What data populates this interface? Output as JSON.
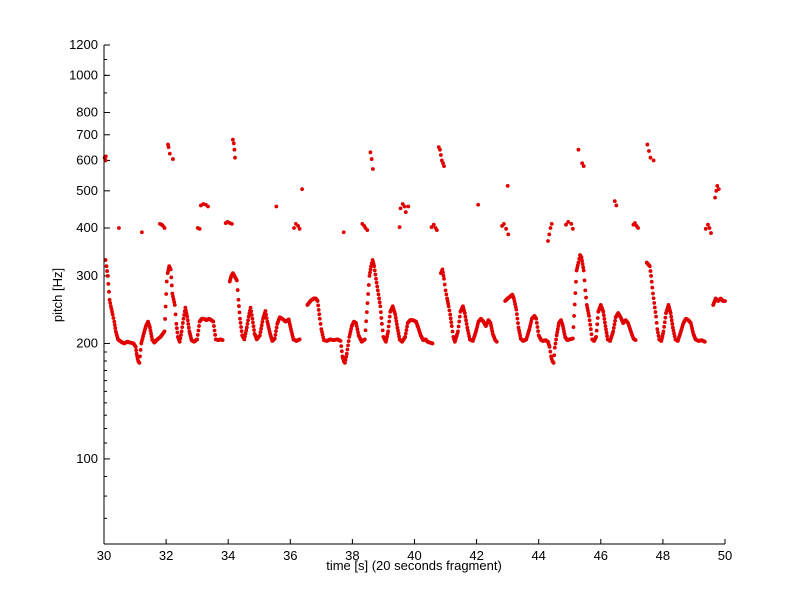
{
  "chart_data": {
    "type": "scatter",
    "xlabel": "time [s] (20 seconds fragment)",
    "ylabel": "pitch [Hz]",
    "xlim": [
      30,
      50
    ],
    "ylim": [
      60,
      1200
    ],
    "yscale": "log",
    "x_ticks": [
      30,
      32,
      34,
      36,
      38,
      40,
      42,
      44,
      46,
      48,
      50
    ],
    "y_ticks": [
      100,
      200,
      300,
      400,
      500,
      600,
      700,
      800,
      1000,
      1200
    ],
    "grid": false,
    "marker_color": "#e00000",
    "segments": [
      [
        30.05,
        330
      ],
      [
        30.08,
        318
      ],
      [
        30.12,
        300
      ],
      [
        30.18,
        260
      ],
      [
        30.22,
        250
      ],
      [
        30.28,
        238
      ],
      [
        30.33,
        228
      ],
      [
        30.38,
        215
      ],
      [
        30.45,
        205
      ],
      [
        30.55,
        202
      ],
      [
        30.65,
        200
      ],
      [
        30.75,
        202
      ],
      [
        30.85,
        201
      ],
      [
        30.95,
        200
      ],
      [
        31.02,
        196
      ],
      [
        31.05,
        188
      ],
      [
        31.1,
        180
      ],
      [
        31.14,
        178
      ],
      [
        31.2,
        200
      ],
      [
        31.28,
        212
      ],
      [
        31.35,
        222
      ],
      [
        31.42,
        228
      ],
      [
        31.48,
        220
      ],
      [
        31.55,
        205
      ],
      [
        31.62,
        201
      ],
      [
        31.72,
        205
      ],
      [
        31.82,
        208
      ],
      [
        31.95,
        215
      ],
      [
        32.02,
        290
      ],
      [
        32.05,
        305
      ],
      [
        32.1,
        318
      ],
      [
        32.15,
        312
      ],
      [
        32.2,
        270
      ],
      [
        32.28,
        252
      ],
      [
        32.33,
        225
      ],
      [
        32.38,
        208
      ],
      [
        32.44,
        202
      ],
      [
        32.5,
        215
      ],
      [
        32.56,
        232
      ],
      [
        32.62,
        248
      ],
      [
        32.68,
        235
      ],
      [
        32.75,
        215
      ],
      [
        32.82,
        204
      ],
      [
        32.9,
        202
      ],
      [
        33.0,
        205
      ],
      [
        33.08,
        228
      ],
      [
        33.15,
        232
      ],
      [
        33.22,
        232
      ],
      [
        33.3,
        230
      ],
      [
        33.38,
        232
      ],
      [
        33.46,
        230
      ],
      [
        33.52,
        228
      ],
      [
        33.6,
        205
      ],
      [
        33.68,
        204
      ],
      [
        33.75,
        205
      ],
      [
        33.82,
        204
      ],
      [
        34.05,
        290
      ],
      [
        34.1,
        300
      ],
      [
        34.15,
        305
      ],
      [
        34.2,
        300
      ],
      [
        34.28,
        292
      ],
      [
        34.33,
        260
      ],
      [
        34.38,
        232
      ],
      [
        34.45,
        210
      ],
      [
        34.52,
        205
      ],
      [
        34.6,
        220
      ],
      [
        34.66,
        235
      ],
      [
        34.72,
        248
      ],
      [
        34.78,
        232
      ],
      [
        34.85,
        212
      ],
      [
        34.92,
        205
      ],
      [
        35.02,
        210
      ],
      [
        35.12,
        232
      ],
      [
        35.2,
        243
      ],
      [
        35.26,
        228
      ],
      [
        35.35,
        212
      ],
      [
        35.42,
        203
      ],
      [
        35.5,
        206
      ],
      [
        35.58,
        225
      ],
      [
        35.66,
        234
      ],
      [
        35.74,
        232
      ],
      [
        35.85,
        228
      ],
      [
        35.95,
        231
      ],
      [
        36.02,
        218
      ],
      [
        36.1,
        205
      ],
      [
        36.2,
        203
      ],
      [
        36.3,
        205
      ],
      [
        36.55,
        252
      ],
      [
        36.65,
        258
      ],
      [
        36.75,
        262
      ],
      [
        36.82,
        262
      ],
      [
        36.88,
        258
      ],
      [
        36.95,
        232
      ],
      [
        37.0,
        218
      ],
      [
        37.08,
        204
      ],
      [
        37.18,
        203
      ],
      [
        37.28,
        205
      ],
      [
        37.4,
        204
      ],
      [
        37.52,
        205
      ],
      [
        37.62,
        203
      ],
      [
        37.68,
        185
      ],
      [
        37.72,
        180
      ],
      [
        37.76,
        178
      ],
      [
        37.82,
        188
      ],
      [
        37.9,
        208
      ],
      [
        37.98,
        222
      ],
      [
        38.05,
        228
      ],
      [
        38.12,
        226
      ],
      [
        38.2,
        210
      ],
      [
        38.3,
        202
      ],
      [
        38.4,
        205
      ],
      [
        38.55,
        300
      ],
      [
        38.6,
        318
      ],
      [
        38.65,
        330
      ],
      [
        38.7,
        318
      ],
      [
        38.76,
        295
      ],
      [
        38.82,
        275
      ],
      [
        38.9,
        250
      ],
      [
        38.95,
        225
      ],
      [
        39.0,
        208
      ],
      [
        39.08,
        202
      ],
      [
        39.15,
        215
      ],
      [
        39.22,
        242
      ],
      [
        39.3,
        250
      ],
      [
        39.38,
        238
      ],
      [
        39.45,
        220
      ],
      [
        39.52,
        205
      ],
      [
        39.6,
        202
      ],
      [
        39.7,
        208
      ],
      [
        39.78,
        226
      ],
      [
        39.86,
        230
      ],
      [
        39.95,
        230
      ],
      [
        40.05,
        228
      ],
      [
        40.12,
        220
      ],
      [
        40.2,
        210
      ],
      [
        40.28,
        204
      ],
      [
        40.36,
        205
      ],
      [
        40.42,
        202
      ],
      [
        40.58,
        200
      ],
      [
        40.85,
        305
      ],
      [
        40.9,
        312
      ],
      [
        40.95,
        295
      ],
      [
        41.0,
        275
      ],
      [
        41.05,
        262
      ],
      [
        41.1,
        250
      ],
      [
        41.15,
        238
      ],
      [
        41.2,
        222
      ],
      [
        41.25,
        208
      ],
      [
        41.3,
        202
      ],
      [
        41.4,
        215
      ],
      [
        41.48,
        242
      ],
      [
        41.56,
        250
      ],
      [
        41.62,
        240
      ],
      [
        41.7,
        220
      ],
      [
        41.78,
        205
      ],
      [
        41.88,
        203
      ],
      [
        41.98,
        215
      ],
      [
        42.06,
        228
      ],
      [
        42.14,
        232
      ],
      [
        42.22,
        228
      ],
      [
        42.3,
        222
      ],
      [
        42.38,
        230
      ],
      [
        42.45,
        226
      ],
      [
        42.52,
        212
      ],
      [
        42.6,
        204
      ],
      [
        42.65,
        202
      ],
      [
        42.92,
        258
      ],
      [
        43.0,
        262
      ],
      [
        43.08,
        265
      ],
      [
        43.15,
        268
      ],
      [
        43.2,
        262
      ],
      [
        43.28,
        245
      ],
      [
        43.35,
        220
      ],
      [
        43.42,
        206
      ],
      [
        43.5,
        203
      ],
      [
        43.6,
        205
      ],
      [
        43.7,
        218
      ],
      [
        43.78,
        232
      ],
      [
        43.86,
        236
      ],
      [
        43.92,
        232
      ],
      [
        44.0,
        210
      ],
      [
        44.08,
        204
      ],
      [
        44.15,
        203
      ],
      [
        44.22,
        204
      ],
      [
        44.3,
        202
      ],
      [
        44.35,
        196
      ],
      [
        44.4,
        185
      ],
      [
        44.44,
        180
      ],
      [
        44.48,
        178
      ],
      [
        44.52,
        195
      ],
      [
        44.58,
        210
      ],
      [
        44.65,
        226
      ],
      [
        44.72,
        230
      ],
      [
        44.78,
        222
      ],
      [
        44.85,
        208
      ],
      [
        44.92,
        204
      ],
      [
        45.0,
        205
      ],
      [
        45.1,
        206
      ],
      [
        45.22,
        310
      ],
      [
        45.28,
        325
      ],
      [
        45.33,
        340
      ],
      [
        45.38,
        335
      ],
      [
        45.45,
        310
      ],
      [
        45.5,
        275
      ],
      [
        45.55,
        252
      ],
      [
        45.62,
        236
      ],
      [
        45.68,
        218
      ],
      [
        45.72,
        205
      ],
      [
        45.78,
        203
      ],
      [
        45.85,
        208
      ],
      [
        45.92,
        242
      ],
      [
        46.0,
        252
      ],
      [
        46.08,
        242
      ],
      [
        46.15,
        222
      ],
      [
        46.22,
        205
      ],
      [
        46.3,
        203
      ],
      [
        46.4,
        215
      ],
      [
        46.48,
        234
      ],
      [
        46.56,
        240
      ],
      [
        46.64,
        234
      ],
      [
        46.72,
        226
      ],
      [
        46.8,
        230
      ],
      [
        46.88,
        226
      ],
      [
        46.96,
        216
      ],
      [
        47.05,
        206
      ],
      [
        47.12,
        204
      ],
      [
        47.48,
        325
      ],
      [
        47.52,
        322
      ],
      [
        47.58,
        318
      ],
      [
        47.62,
        300
      ],
      [
        47.68,
        270
      ],
      [
        47.72,
        255
      ],
      [
        47.78,
        235
      ],
      [
        47.82,
        218
      ],
      [
        47.88,
        205
      ],
      [
        47.95,
        203
      ],
      [
        48.02,
        215
      ],
      [
        48.1,
        240
      ],
      [
        48.18,
        252
      ],
      [
        48.25,
        240
      ],
      [
        48.32,
        220
      ],
      [
        48.4,
        205
      ],
      [
        48.48,
        203
      ],
      [
        48.58,
        215
      ],
      [
        48.66,
        226
      ],
      [
        48.74,
        232
      ],
      [
        48.82,
        230
      ],
      [
        48.9,
        226
      ],
      [
        48.98,
        212
      ],
      [
        49.05,
        205
      ],
      [
        49.15,
        203
      ],
      [
        49.25,
        204
      ],
      [
        49.35,
        202
      ],
      [
        49.62,
        252
      ],
      [
        49.7,
        262
      ],
      [
        49.78,
        258
      ],
      [
        49.86,
        262
      ],
      [
        49.94,
        258
      ],
      [
        50.0,
        258
      ]
    ],
    "harmonics": [
      [
        30.02,
        610
      ],
      [
        30.05,
        600
      ],
      [
        30.06,
        615
      ],
      [
        30.48,
        400
      ],
      [
        31.22,
        390
      ],
      [
        31.8,
        410
      ],
      [
        31.86,
        408
      ],
      [
        31.9,
        405
      ],
      [
        31.95,
        400
      ],
      [
        32.06,
        660
      ],
      [
        32.08,
        650
      ],
      [
        32.12,
        625
      ],
      [
        32.22,
        605
      ],
      [
        33.02,
        400
      ],
      [
        33.08,
        398
      ],
      [
        33.12,
        458
      ],
      [
        33.2,
        462
      ],
      [
        33.28,
        460
      ],
      [
        33.35,
        455
      ],
      [
        33.92,
        412
      ],
      [
        33.98,
        415
      ],
      [
        34.05,
        412
      ],
      [
        34.12,
        410
      ],
      [
        34.15,
        680
      ],
      [
        34.18,
        665
      ],
      [
        34.2,
        640
      ],
      [
        34.22,
        610
      ],
      [
        35.55,
        455
      ],
      [
        36.12,
        400
      ],
      [
        36.18,
        410
      ],
      [
        36.25,
        405
      ],
      [
        36.3,
        398
      ],
      [
        36.38,
        505
      ],
      [
        37.72,
        390
      ],
      [
        38.32,
        410
      ],
      [
        38.38,
        405
      ],
      [
        38.42,
        400
      ],
      [
        38.48,
        395
      ],
      [
        38.58,
        630
      ],
      [
        38.62,
        605
      ],
      [
        38.66,
        570
      ],
      [
        39.52,
        402
      ],
      [
        39.55,
        450
      ],
      [
        39.62,
        462
      ],
      [
        39.68,
        455
      ],
      [
        39.72,
        440
      ],
      [
        39.8,
        455
      ],
      [
        40.55,
        402
      ],
      [
        40.62,
        408
      ],
      [
        40.68,
        400
      ],
      [
        40.72,
        395
      ],
      [
        40.78,
        650
      ],
      [
        40.82,
        640
      ],
      [
        40.85,
        620
      ],
      [
        40.88,
        600
      ],
      [
        40.92,
        590
      ],
      [
        40.95,
        580
      ],
      [
        42.05,
        460
      ],
      [
        42.82,
        405
      ],
      [
        42.88,
        410
      ],
      [
        42.95,
        398
      ],
      [
        43.02,
        385
      ],
      [
        43.0,
        515
      ],
      [
        44.3,
        370
      ],
      [
        44.34,
        385
      ],
      [
        44.38,
        400
      ],
      [
        44.42,
        410
      ],
      [
        44.88,
        408
      ],
      [
        44.95,
        415
      ],
      [
        45.05,
        410
      ],
      [
        45.1,
        398
      ],
      [
        45.28,
        640
      ],
      [
        45.4,
        590
      ],
      [
        45.45,
        580
      ],
      [
        46.45,
        470
      ],
      [
        46.5,
        458
      ],
      [
        47.05,
        408
      ],
      [
        47.1,
        412
      ],
      [
        47.15,
        405
      ],
      [
        47.2,
        400
      ],
      [
        47.5,
        660
      ],
      [
        47.55,
        635
      ],
      [
        47.6,
        610
      ],
      [
        47.7,
        600
      ],
      [
        49.38,
        398
      ],
      [
        49.45,
        408
      ],
      [
        49.5,
        400
      ],
      [
        49.55,
        388
      ],
      [
        49.68,
        480
      ],
      [
        49.72,
        500
      ],
      [
        49.75,
        515
      ],
      [
        49.8,
        505
      ]
    ]
  }
}
